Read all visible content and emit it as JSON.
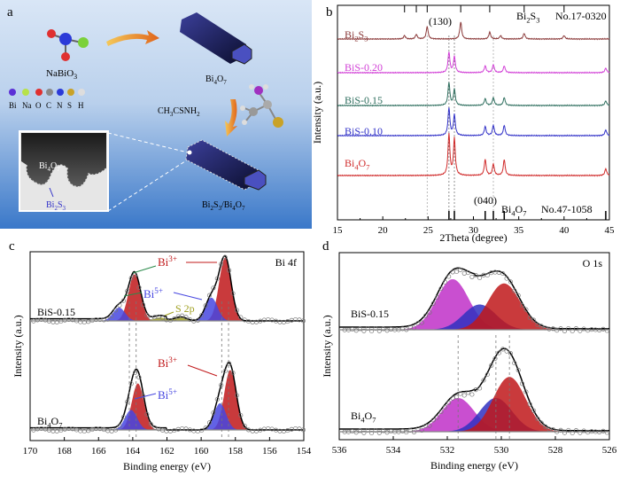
{
  "panel_a": {
    "letter": "a",
    "nabio3": "NaBiO",
    "nabio3_sub": "3",
    "bi4o7_top": "Bi",
    "bi4o7_top_sub1": "4",
    "bi4o7_top_o": "O",
    "bi4o7_top_sub2": "7",
    "legend_elements": [
      "Bi",
      "Na",
      "O",
      "C",
      "N",
      "S",
      "H"
    ],
    "legend_colors": [
      "#5b2fd6",
      "#b7e24a",
      "#e03030",
      "#8a8a8a",
      "#2b3ad8",
      "#c9a227",
      "#dddddd"
    ],
    "reagent": "CH",
    "reagent_sub": "3",
    "reagent_rest": "CSNH",
    "reagent_sub2": "2",
    "tem_bi4o7": "Bi",
    "tem_bi4o7_sub1": "4",
    "tem_bi4o7_o": "O",
    "tem_bi4o7_sub2": "7",
    "tem_bi2s3": "Bi",
    "tem_bi2s3_sub1": "2",
    "tem_bi2s3_s": "S",
    "tem_bi2s3_sub2": "3",
    "product": "Bi",
    "product_sub1": "2",
    "product_s": "S",
    "product_sub2": "3",
    "product_slash": "/Bi",
    "product_sub3": "4",
    "product_o": "O",
    "product_sub4": "7"
  },
  "chart_data": [
    {
      "panel": "b",
      "type": "line",
      "xlabel": "2Theta (degree)",
      "ylabel": "Intensity (a.u.)",
      "xlim": [
        15,
        45
      ],
      "xticks": [
        15,
        20,
        25,
        30,
        35,
        40,
        45
      ],
      "series": [
        {
          "name": "Bi2S3",
          "label_main": "Bi",
          "label_sub1": "2",
          "label_mid": "S",
          "label_sub2": "3",
          "color": "#8b3a3a",
          "peaks": [
            [
              22.4,
              0.15
            ],
            [
              23.7,
              0.2
            ],
            [
              24.9,
              0.55
            ],
            [
              28.6,
              0.75
            ],
            [
              31.8,
              0.3
            ],
            [
              33.0,
              0.15
            ],
            [
              35.6,
              0.25
            ],
            [
              40.0,
              0.15
            ],
            [
              45.6,
              0.2
            ]
          ]
        },
        {
          "name": "BiS-0.20",
          "label_main": "BiS-0.20",
          "color": "#d13fd6",
          "peaks": [
            [
              27.3,
              0.9
            ],
            [
              27.9,
              0.7
            ],
            [
              31.3,
              0.3
            ],
            [
              32.2,
              0.35
            ],
            [
              33.4,
              0.3
            ],
            [
              44.6,
              0.2
            ]
          ]
        },
        {
          "name": "BiS-0.15",
          "label_main": "BiS-0.15",
          "color": "#2f6f5f",
          "peaks": [
            [
              27.3,
              1.0
            ],
            [
              27.9,
              0.7
            ],
            [
              31.3,
              0.3
            ],
            [
              32.2,
              0.35
            ],
            [
              33.4,
              0.35
            ],
            [
              44.6,
              0.2
            ]
          ]
        },
        {
          "name": "BiS-0.10",
          "label_main": "BiS-0.10",
          "color": "#3232c8",
          "peaks": [
            [
              27.3,
              1.2
            ],
            [
              27.9,
              0.9
            ],
            [
              31.3,
              0.4
            ],
            [
              32.2,
              0.45
            ],
            [
              33.4,
              0.45
            ],
            [
              44.6,
              0.25
            ]
          ]
        },
        {
          "name": "Bi4O7",
          "label_main": "Bi",
          "label_sub1": "4",
          "label_mid": "O",
          "label_sub2": "7",
          "color": "#d02a2a",
          "peaks": [
            [
              27.3,
              1.8
            ],
            [
              27.9,
              1.6
            ],
            [
              31.3,
              0.7
            ],
            [
              32.2,
              0.5
            ],
            [
              33.4,
              0.7
            ],
            [
              44.6,
              0.3
            ]
          ]
        }
      ],
      "annotations": {
        "peak_130": "(130)",
        "peak_040": "(040)",
        "ref_top_main": "Bi",
        "ref_top_sub1": "2",
        "ref_top_mid": "S",
        "ref_top_sub2": "3",
        "ref_top_card": "No.17-0320",
        "ref_bottom_main": "Bi",
        "ref_bottom_sub1": "4",
        "ref_bottom_mid": "O",
        "ref_bottom_sub2": "7",
        "ref_bottom_card": "No.47-1058"
      }
    },
    {
      "panel": "c",
      "type": "line",
      "title": "Bi 4f",
      "xlabel": "Binding energy (eV)",
      "ylabel": "Intensity (a.u.)",
      "xlim": [
        170,
        154
      ],
      "xticks": [
        170,
        168,
        166,
        164,
        162,
        160,
        158,
        156,
        154
      ],
      "samples": [
        {
          "name": "BiS-0.15",
          "label": "BiS-0.15",
          "components": [
            {
              "name": "Bi3+",
              "color": "#c0181a",
              "peaks": [
                [
                  158.6,
                  0.95
                ],
                [
                  163.9,
                  0.7
                ]
              ]
            },
            {
              "name": "Bi5+",
              "color": "#4646e0",
              "peaks": [
                [
                  159.4,
                  0.35
                ],
                [
                  164.8,
                  0.2
                ]
              ]
            },
            {
              "name": "S 2p",
              "color": "#a0a020",
              "peaks": [
                [
                  161.2,
                  0.06
                ],
                [
                  162.4,
                  0.05
                ]
              ]
            }
          ]
        },
        {
          "name": "Bi4O7",
          "label_main": "Bi",
          "label_sub1": "4",
          "label_mid": "O",
          "label_sub2": "7",
          "components": [
            {
              "name": "Bi3+",
              "color": "#c0181a",
              "peaks": [
                [
                  158.3,
                  0.9
                ],
                [
                  163.7,
                  0.7
                ]
              ]
            },
            {
              "name": "Bi5+",
              "color": "#4646e0",
              "peaks": [
                [
                  158.9,
                  0.4
                ],
                [
                  164.1,
                  0.3
                ]
              ]
            }
          ]
        }
      ],
      "labels": {
        "bi3_main": "Bi",
        "bi3_sup": "3+",
        "bi5_main": "Bi",
        "bi5_sup": "5+",
        "s2p": "S 2p"
      }
    },
    {
      "panel": "d",
      "type": "line",
      "title": "O 1s",
      "xlabel": "Binding energy (eV)",
      "ylabel": "Intensity (a.u.)",
      "xlim": [
        536,
        526
      ],
      "xticks": [
        536,
        534,
        532,
        530,
        528,
        526
      ],
      "samples": [
        {
          "name": "BiS-0.15",
          "label": "BiS-0.15",
          "components": [
            {
              "color": "#c030c8",
              "center": 531.8,
              "height": 0.6
            },
            {
              "color": "#3030c0",
              "center": 530.8,
              "height": 0.3
            },
            {
              "color": "#c0181a",
              "center": 529.9,
              "height": 0.55
            }
          ]
        },
        {
          "name": "Bi4O7",
          "label_main": "Bi",
          "label_sub1": "4",
          "label_mid": "O",
          "label_sub2": "7",
          "components": [
            {
              "color": "#c030c8",
              "center": 531.6,
              "height": 0.4
            },
            {
              "color": "#3030c0",
              "center": 530.2,
              "height": 0.4
            },
            {
              "color": "#c0181a",
              "center": 529.7,
              "height": 0.65
            }
          ]
        }
      ]
    }
  ]
}
